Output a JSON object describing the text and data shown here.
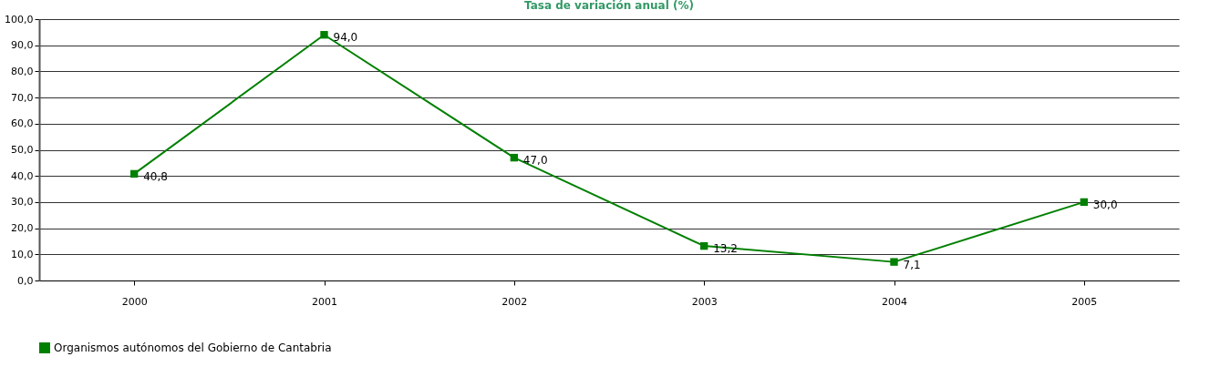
{
  "chart_data": {
    "type": "line",
    "title": "Tasa de variación anual (%)",
    "categories": [
      "2000",
      "2001",
      "2002",
      "2003",
      "2004",
      "2005"
    ],
    "series": [
      {
        "name": "Organismos autónomos del Gobierno de Cantabria",
        "color": "#008000",
        "values": [
          40.8,
          94.0,
          47.0,
          13.2,
          7.1,
          30.0
        ],
        "value_labels": [
          "40,8",
          "94,0",
          "47,0",
          "13,2",
          "7,1",
          "30,0"
        ]
      }
    ],
    "ylim": [
      0,
      100
    ],
    "yticks": [
      {
        "value": 0,
        "label": "0,0"
      },
      {
        "value": 10,
        "label": "10,0"
      },
      {
        "value": 20,
        "label": "20,0"
      },
      {
        "value": 30,
        "label": "30,0"
      },
      {
        "value": 40,
        "label": "40,0"
      },
      {
        "value": 50,
        "label": "50,0"
      },
      {
        "value": 60,
        "label": "60,0"
      },
      {
        "value": 70,
        "label": "70,0"
      },
      {
        "value": 80,
        "label": "80,0"
      },
      {
        "value": 90,
        "label": "90,0"
      },
      {
        "value": 100,
        "label": "100,0"
      }
    ],
    "grid": "y",
    "legend": "bottom",
    "marker": "square",
    "line_style": "solid"
  }
}
